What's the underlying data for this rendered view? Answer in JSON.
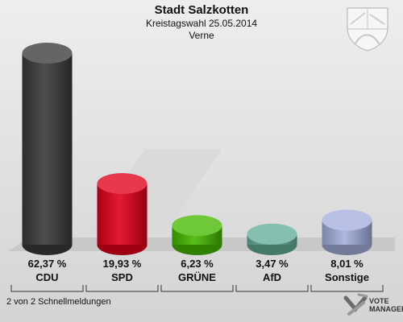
{
  "header": {
    "title": "Stadt Salzkotten",
    "subtitle": "Kreistagswahl 25.05.2014",
    "region": "Verne"
  },
  "chart_data": {
    "type": "bar",
    "categories": [
      "CDU",
      "SPD",
      "GRÜNE",
      "AfD",
      "Sonstige"
    ],
    "values": [
      62.37,
      19.93,
      6.23,
      3.47,
      8.01
    ],
    "value_labels": [
      "62,37 %",
      "19,93 %",
      "6,23 %",
      "3,47 %",
      "8,01 %"
    ],
    "colors": [
      "#3a3a3a",
      "#e2001a",
      "#46b800",
      "#62ad98",
      "#a4b0de"
    ],
    "ylim": [
      0,
      62.37
    ]
  },
  "footer": {
    "status_text": "2 von 2 Schnellmeldungen"
  },
  "logo": {
    "line1": "VOTE",
    "line2": "MANAGER"
  },
  "icons": {
    "crest": "coat-of-arms-icon",
    "logo": "vote-manager-logo-icon"
  }
}
